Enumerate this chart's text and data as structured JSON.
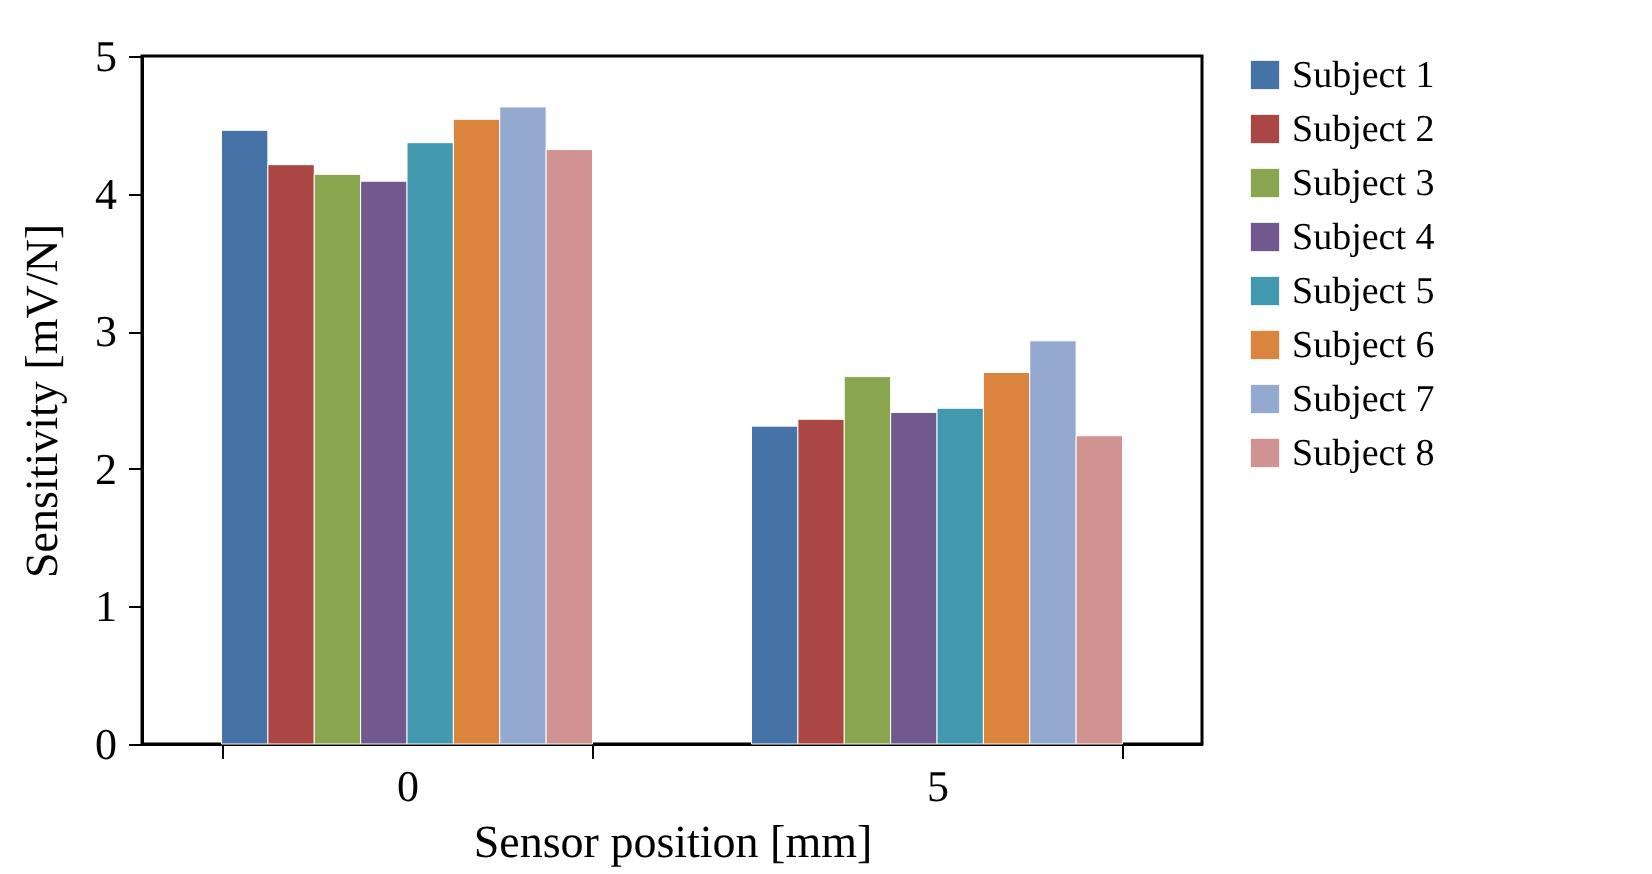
{
  "chart_data": {
    "type": "bar",
    "xlabel": "Sensor position [mm]",
    "ylabel": "Sensitivity [mV/N]",
    "categories": [
      "0",
      "5"
    ],
    "series": [
      {
        "name": "Subject 1",
        "color": "#4572a7",
        "values": [
          4.46,
          2.31
        ]
      },
      {
        "name": "Subject 2",
        "color": "#aa4643",
        "values": [
          4.21,
          2.36
        ]
      },
      {
        "name": "Subject 3",
        "color": "#89a54e",
        "values": [
          4.14,
          2.67
        ]
      },
      {
        "name": "Subject 4",
        "color": "#71588f",
        "values": [
          4.09,
          2.41
        ]
      },
      {
        "name": "Subject 5",
        "color": "#4198af",
        "values": [
          4.37,
          2.44
        ]
      },
      {
        "name": "Subject 6",
        "color": "#db843d",
        "values": [
          4.54,
          2.7
        ]
      },
      {
        "name": "Subject 7",
        "color": "#93a9cf",
        "values": [
          4.63,
          2.93
        ]
      },
      {
        "name": "Subject 8",
        "color": "#d19392",
        "values": [
          4.32,
          2.24
        ]
      }
    ],
    "ylim": [
      0,
      5
    ],
    "yticks": [
      0,
      1,
      2,
      3,
      4,
      5
    ],
    "grid": false,
    "legend": "right"
  }
}
